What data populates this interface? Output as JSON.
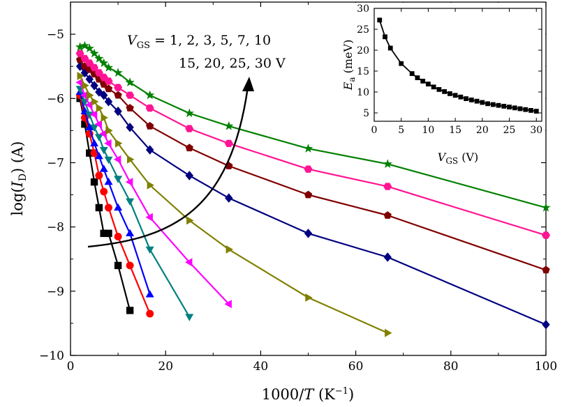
{
  "chart_data": {
    "type": "line",
    "title": "",
    "xlabel": {
      "pre": "1000/",
      "var": "T",
      "post": " (K",
      "sup": "−1",
      "end": ")"
    },
    "ylabel": {
      "pre": "log(",
      "var": "I",
      "sub": "D",
      "post": ") (A)"
    },
    "xlim": [
      0,
      100
    ],
    "ylim": [
      -10,
      -4.5
    ],
    "xticks": [
      0,
      20,
      40,
      60,
      80,
      100
    ],
    "yticks": [
      -10,
      -9,
      -8,
      -7,
      -6,
      -5
    ],
    "xtick_labels": [
      "0",
      "20",
      "40",
      "60",
      "80",
      "100"
    ],
    "ytick_labels": [
      "−10",
      "−9",
      "−8",
      "−7",
      "−6",
      "−5"
    ],
    "annotation": {
      "line1_var": "V",
      "line1_sub": "GS",
      "line1_rest": " = 1, 2, 3, 5, 7, 10",
      "line2": "15, 20, 25, 30 V",
      "arrow": "curved arrow indicating increasing V_GS"
    },
    "series": [
      {
        "name": "1 V",
        "marker": "square",
        "color": "#000000",
        "x": [
          2,
          3,
          4,
          5,
          6,
          7,
          8,
          10,
          12.5
        ],
        "y": [
          -6.0,
          -6.4,
          -6.85,
          -7.3,
          -7.7,
          -8.1,
          -8.1,
          -8.6,
          -9.3
        ]
      },
      {
        "name": "2 V",
        "marker": "circle",
        "color": "#ff0000",
        "x": [
          2,
          3,
          4,
          5,
          6,
          7,
          8,
          10,
          12.5,
          16.7
        ],
        "y": [
          -5.95,
          -6.3,
          -6.55,
          -6.85,
          -7.2,
          -7.45,
          -7.7,
          -8.15,
          -8.6,
          -9.35
        ]
      },
      {
        "name": "3 V",
        "marker": "triangle-up",
        "color": "#0000ff",
        "x": [
          2,
          3,
          4,
          5,
          6,
          7,
          8,
          10,
          12.5,
          16.7
        ],
        "y": [
          -5.9,
          -6.2,
          -6.45,
          -6.7,
          -6.9,
          -7.1,
          -7.3,
          -7.7,
          -8.1,
          -9.05
        ]
      },
      {
        "name": "5 V",
        "marker": "triangle-down",
        "color": "#008080",
        "x": [
          2,
          3,
          4,
          5,
          6,
          7,
          8,
          10,
          12.5,
          16.7,
          25
        ],
        "y": [
          -5.85,
          -6.05,
          -6.25,
          -6.45,
          -6.6,
          -6.8,
          -6.95,
          -7.25,
          -7.6,
          -8.35,
          -9.4
        ]
      },
      {
        "name": "7 V",
        "marker": "triangle-left",
        "color": "#ff00ff",
        "x": [
          2,
          3,
          4,
          5,
          6,
          7,
          8,
          10,
          12.5,
          16.7,
          25,
          33.3
        ],
        "y": [
          -5.75,
          -5.95,
          -6.1,
          -6.25,
          -6.4,
          -6.55,
          -6.7,
          -6.95,
          -7.3,
          -7.85,
          -8.55,
          -9.2
        ]
      },
      {
        "name": "10 V",
        "marker": "triangle-right",
        "color": "#808000",
        "x": [
          2,
          3,
          4,
          5,
          6,
          7,
          8,
          10,
          12.5,
          16.7,
          25,
          33.3,
          50,
          66.7
        ],
        "y": [
          -5.65,
          -5.8,
          -5.95,
          -6.05,
          -6.15,
          -6.3,
          -6.5,
          -6.7,
          -6.95,
          -7.35,
          -7.9,
          -8.35,
          -9.1,
          -9.65
        ]
      },
      {
        "name": "15 V",
        "marker": "diamond",
        "color": "#000080",
        "x": [
          2,
          3,
          4,
          5,
          6,
          7,
          8,
          10,
          12.5,
          16.7,
          25,
          33.3,
          50,
          66.7,
          100
        ],
        "y": [
          -5.5,
          -5.6,
          -5.7,
          -5.8,
          -5.9,
          -5.95,
          -6.05,
          -6.2,
          -6.45,
          -6.8,
          -7.2,
          -7.55,
          -8.1,
          -8.47,
          -9.52
        ]
      },
      {
        "name": "20 V",
        "marker": "pentagon",
        "color": "#800000",
        "x": [
          2,
          3,
          4,
          5,
          6,
          7,
          8,
          10,
          12.5,
          16.7,
          25,
          33.3,
          50,
          66.7,
          100
        ],
        "y": [
          -5.4,
          -5.5,
          -5.55,
          -5.62,
          -5.7,
          -5.78,
          -5.85,
          -5.95,
          -6.15,
          -6.43,
          -6.77,
          -7.05,
          -7.5,
          -7.82,
          -8.67
        ]
      },
      {
        "name": "25 V",
        "marker": "hexagon",
        "color": "#ff1493",
        "x": [
          2,
          3,
          4,
          5,
          6,
          7,
          8,
          10,
          12.5,
          16.7,
          25,
          33.3,
          50,
          66.7,
          100
        ],
        "y": [
          -5.3,
          -5.38,
          -5.45,
          -5.52,
          -5.6,
          -5.67,
          -5.73,
          -5.83,
          -5.95,
          -6.15,
          -6.47,
          -6.7,
          -7.1,
          -7.37,
          -8.13
        ]
      },
      {
        "name": "30 V",
        "marker": "star",
        "color": "#008000",
        "x": [
          2,
          3,
          4,
          5,
          6,
          7,
          8,
          10,
          12.5,
          16.7,
          25,
          33.3,
          50,
          66.7,
          100
        ],
        "y": [
          -5.2,
          -5.18,
          -5.22,
          -5.3,
          -5.38,
          -5.45,
          -5.52,
          -5.6,
          -5.75,
          -5.95,
          -6.23,
          -6.43,
          -6.78,
          -7.02,
          -7.7
        ]
      }
    ],
    "inset": {
      "type": "line",
      "xlabel": {
        "var": "V",
        "sub": "GS",
        "post": " (V)"
      },
      "ylabel": {
        "var": "E",
        "sub": "a",
        "post": " (meV)"
      },
      "xlim": [
        0,
        31
      ],
      "ylim": [
        3,
        30
      ],
      "xticks": [
        0,
        5,
        10,
        15,
        20,
        25,
        30
      ],
      "yticks": [
        5,
        10,
        15,
        20,
        25,
        30
      ],
      "xtick_labels": [
        "0",
        "5",
        "10",
        "15",
        "20",
        "25",
        "30"
      ],
      "ytick_labels": [
        "5",
        "10",
        "15",
        "20",
        "25",
        "30"
      ],
      "marker": "square",
      "color": "#000000",
      "x": [
        1,
        2,
        3,
        5,
        7,
        8,
        9,
        10,
        11,
        12,
        13,
        14,
        15,
        16,
        17,
        18,
        19,
        20,
        21,
        22,
        23,
        24,
        25,
        26,
        27,
        28,
        29,
        30
      ],
      "y": [
        27.2,
        23.2,
        20.5,
        16.8,
        14.4,
        13.4,
        12.6,
        11.9,
        11.2,
        10.6,
        10.1,
        9.6,
        9.2,
        8.8,
        8.4,
        8.1,
        7.8,
        7.5,
        7.2,
        7.0,
        6.8,
        6.6,
        6.4,
        6.2,
        6.0,
        5.8,
        5.6,
        5.4
      ]
    }
  }
}
